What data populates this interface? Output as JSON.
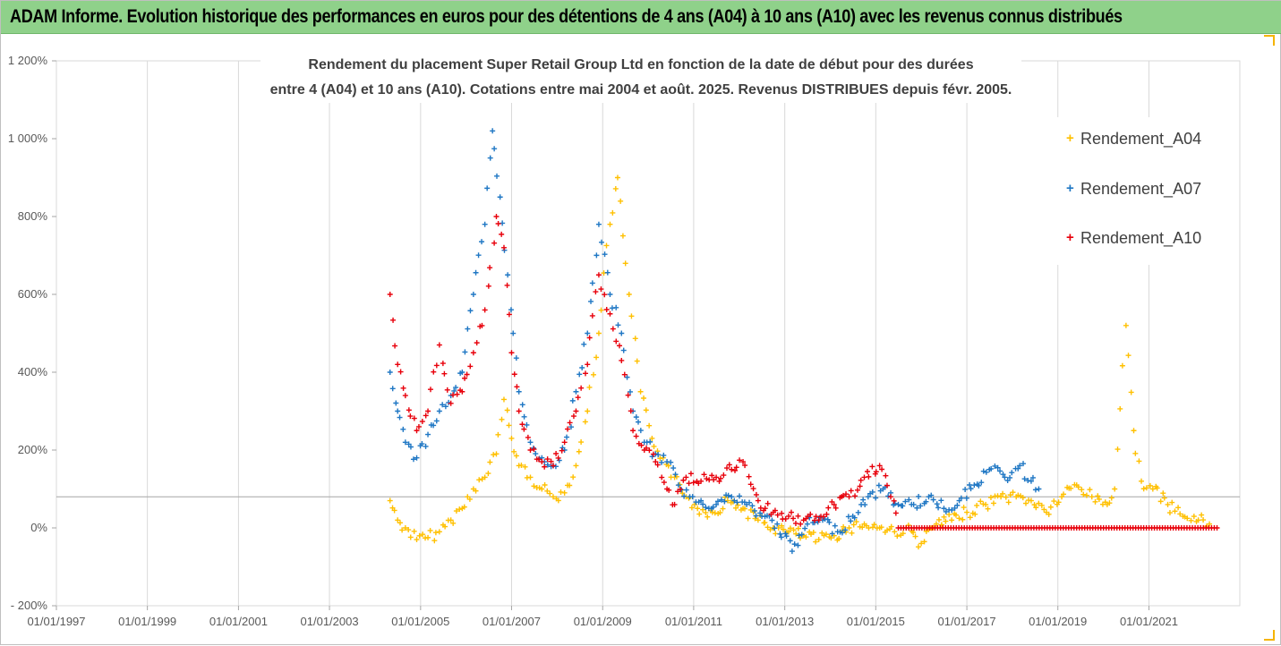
{
  "banner": {
    "title": "ADAM Informe. Evolution historique des performances en euros pour des détentions de 4 ans (A04) à 10 ans (A10) avec les revenus connus distribués"
  },
  "colors": {
    "banner_bg": "#8fd18a",
    "A04": "#ffc000",
    "A07": "#1f77c4",
    "A10": "#e8000b",
    "grid": "#d9d9d9",
    "threshold_line": "#a6a6a6"
  },
  "chart_data": {
    "type": "scatter",
    "title": "Rendement du placement Super Retail Group Ltd en fonction de la date de début pour des durées",
    "subtitle": "entre 4 (A04) et 10 ans (A10). Cotations entre mai 2004 et août. 2025. Revenus DISTRIBUES depuis févr. 2005.",
    "xlabel": "",
    "ylabel": "",
    "x_ticks": [
      "01/01/1997",
      "01/01/1999",
      "01/01/2001",
      "01/01/2003",
      "01/01/2005",
      "01/01/2007",
      "01/01/2009",
      "01/01/2011",
      "01/01/2013",
      "01/01/2015",
      "01/01/2017",
      "01/01/2019",
      "01/01/2021"
    ],
    "y_ticks": [
      "- 200%",
      "0%",
      "200%",
      "400%",
      "600%",
      "800%",
      "1 000%",
      "1 200%"
    ],
    "ylim": [
      -200,
      1200
    ],
    "xlim": [
      "1997-01-01",
      "2022-12-31"
    ],
    "grid": "vertical",
    "legend_position": "right",
    "threshold_line_value": 80,
    "marker": "+",
    "series": [
      {
        "name": "Rendement_A04",
        "points": [
          [
            "2004-05-01",
            70
          ],
          [
            "2004-07-01",
            20
          ],
          [
            "2004-09-01",
            0
          ],
          [
            "2004-12-01",
            -30
          ],
          [
            "2005-03-01",
            -25
          ],
          [
            "2005-06-01",
            -10
          ],
          [
            "2005-09-01",
            20
          ],
          [
            "2005-12-01",
            50
          ],
          [
            "2006-03-01",
            100
          ],
          [
            "2006-06-01",
            130
          ],
          [
            "2006-09-01",
            190
          ],
          [
            "2006-11-01",
            330
          ],
          [
            "2007-01-01",
            230
          ],
          [
            "2007-03-01",
            160
          ],
          [
            "2007-06-01",
            130
          ],
          [
            "2007-09-01",
            100
          ],
          [
            "2007-12-01",
            80
          ],
          [
            "2008-03-01",
            90
          ],
          [
            "2008-06-01",
            160
          ],
          [
            "2008-09-01",
            300
          ],
          [
            "2008-12-01",
            500
          ],
          [
            "2009-03-01",
            780
          ],
          [
            "2009-05-01",
            900
          ],
          [
            "2009-08-01",
            600
          ],
          [
            "2009-11-01",
            350
          ],
          [
            "2010-02-01",
            230
          ],
          [
            "2010-05-01",
            180
          ],
          [
            "2010-08-01",
            130
          ],
          [
            "2010-11-01",
            80
          ],
          [
            "2011-02-01",
            50
          ],
          [
            "2011-06-01",
            40
          ],
          [
            "2011-10-01",
            70
          ],
          [
            "2012-02-01",
            50
          ],
          [
            "2012-06-01",
            20
          ],
          [
            "2012-10-01",
            0
          ],
          [
            "2013-02-01",
            -10
          ],
          [
            "2013-06-01",
            -20
          ],
          [
            "2013-10-01",
            -30
          ],
          [
            "2014-02-01",
            -20
          ],
          [
            "2014-06-01",
            0
          ],
          [
            "2014-10-01",
            10
          ],
          [
            "2015-02-01",
            0
          ],
          [
            "2015-06-01",
            -10
          ],
          [
            "2015-09-01",
            0
          ],
          [
            "2016-01-01",
            -40
          ],
          [
            "2016-05-01",
            10
          ],
          [
            "2016-09-01",
            20
          ],
          [
            "2017-01-01",
            40
          ],
          [
            "2017-06-01",
            60
          ],
          [
            "2017-10-01",
            80
          ],
          [
            "2018-02-01",
            80
          ],
          [
            "2018-06-01",
            70
          ],
          [
            "2018-10-01",
            40
          ],
          [
            "2019-02-01",
            80
          ],
          [
            "2019-06-01",
            110
          ],
          [
            "2019-10-01",
            80
          ],
          [
            "2020-02-01",
            60
          ],
          [
            "2020-04-01",
            100
          ],
          [
            "2020-07-01",
            520
          ],
          [
            "2020-09-01",
            250
          ],
          [
            "2020-11-01",
            120
          ],
          [
            "2021-02-01",
            100
          ],
          [
            "2021-06-01",
            60
          ],
          [
            "2021-10-01",
            30
          ],
          [
            "2022-02-01",
            20
          ],
          [
            "2022-05-01",
            10
          ]
        ]
      },
      {
        "name": "Rendement_A07",
        "points": [
          [
            "2004-05-01",
            400
          ],
          [
            "2004-07-01",
            300
          ],
          [
            "2004-09-01",
            220
          ],
          [
            "2004-12-01",
            180
          ],
          [
            "2005-03-01",
            240
          ],
          [
            "2005-06-01",
            300
          ],
          [
            "2005-09-01",
            340
          ],
          [
            "2005-12-01",
            400
          ],
          [
            "2006-03-01",
            600
          ],
          [
            "2006-06-01",
            780
          ],
          [
            "2006-08-01",
            1020
          ],
          [
            "2006-10-01",
            850
          ],
          [
            "2006-12-01",
            650
          ],
          [
            "2007-03-01",
            350
          ],
          [
            "2007-06-01",
            220
          ],
          [
            "2007-09-01",
            180
          ],
          [
            "2007-12-01",
            160
          ],
          [
            "2008-03-01",
            200
          ],
          [
            "2008-06-01",
            350
          ],
          [
            "2008-09-01",
            500
          ],
          [
            "2008-12-01",
            780
          ],
          [
            "2009-03-01",
            600
          ],
          [
            "2009-06-01",
            500
          ],
          [
            "2009-09-01",
            300
          ],
          [
            "2009-12-01",
            220
          ],
          [
            "2010-03-01",
            190
          ],
          [
            "2010-06-01",
            170
          ],
          [
            "2010-09-01",
            110
          ],
          [
            "2010-12-01",
            80
          ],
          [
            "2011-03-01",
            70
          ],
          [
            "2011-07-01",
            60
          ],
          [
            "2011-11-01",
            80
          ],
          [
            "2012-03-01",
            60
          ],
          [
            "2012-07-01",
            30
          ],
          [
            "2012-11-01",
            10
          ],
          [
            "2013-03-01",
            -60
          ],
          [
            "2013-07-01",
            10
          ],
          [
            "2013-11-01",
            20
          ],
          [
            "2014-03-01",
            -10
          ],
          [
            "2014-07-01",
            30
          ],
          [
            "2014-11-01",
            80
          ],
          [
            "2015-03-01",
            100
          ],
          [
            "2015-07-01",
            60
          ],
          [
            "2015-11-01",
            60
          ],
          [
            "2016-03-01",
            80
          ],
          [
            "2016-07-01",
            50
          ],
          [
            "2016-11-01",
            70
          ],
          [
            "2017-03-01",
            110
          ],
          [
            "2017-07-01",
            150
          ],
          [
            "2017-11-01",
            130
          ],
          [
            "2018-03-01",
            160
          ],
          [
            "2018-06-01",
            120
          ],
          [
            "2018-08-01",
            100
          ]
        ]
      },
      {
        "name": "Rendement_A10",
        "points": [
          [
            "2004-05-01",
            600
          ],
          [
            "2004-07-01",
            420
          ],
          [
            "2004-09-01",
            340
          ],
          [
            "2004-12-01",
            250
          ],
          [
            "2005-03-01",
            300
          ],
          [
            "2005-06-01",
            470
          ],
          [
            "2005-09-01",
            320
          ],
          [
            "2005-12-01",
            350
          ],
          [
            "2006-03-01",
            450
          ],
          [
            "2006-06-01",
            560
          ],
          [
            "2006-09-01",
            800
          ],
          [
            "2006-11-01",
            720
          ],
          [
            "2007-01-01",
            450
          ],
          [
            "2007-03-01",
            300
          ],
          [
            "2007-06-01",
            200
          ],
          [
            "2007-09-01",
            170
          ],
          [
            "2007-12-01",
            160
          ],
          [
            "2008-03-01",
            220
          ],
          [
            "2008-06-01",
            300
          ],
          [
            "2008-09-01",
            420
          ],
          [
            "2008-12-01",
            650
          ],
          [
            "2009-03-01",
            550
          ],
          [
            "2009-06-01",
            430
          ],
          [
            "2009-09-01",
            250
          ],
          [
            "2009-12-01",
            200
          ],
          [
            "2010-03-01",
            170
          ],
          [
            "2010-06-01",
            100
          ],
          [
            "2010-08-01",
            60
          ],
          [
            "2010-11-01",
            130
          ],
          [
            "2011-03-01",
            120
          ],
          [
            "2011-07-01",
            130
          ],
          [
            "2011-11-01",
            150
          ],
          [
            "2012-02-01",
            170
          ],
          [
            "2012-06-01",
            70
          ],
          [
            "2012-10-01",
            40
          ],
          [
            "2013-02-01",
            30
          ],
          [
            "2013-06-01",
            20
          ],
          [
            "2013-10-01",
            20
          ],
          [
            "2014-02-01",
            60
          ],
          [
            "2014-06-01",
            80
          ],
          [
            "2014-10-01",
            130
          ],
          [
            "2015-02-01",
            160
          ],
          [
            "2015-05-01",
            80
          ],
          [
            "2015-07-01",
            0
          ],
          [
            "2016-06-01",
            0
          ],
          [
            "2017-06-01",
            0
          ],
          [
            "2018-06-01",
            0
          ],
          [
            "2019-06-01",
            0
          ],
          [
            "2020-06-01",
            0
          ],
          [
            "2021-06-01",
            0
          ],
          [
            "2022-07-01",
            0
          ]
        ]
      }
    ]
  }
}
